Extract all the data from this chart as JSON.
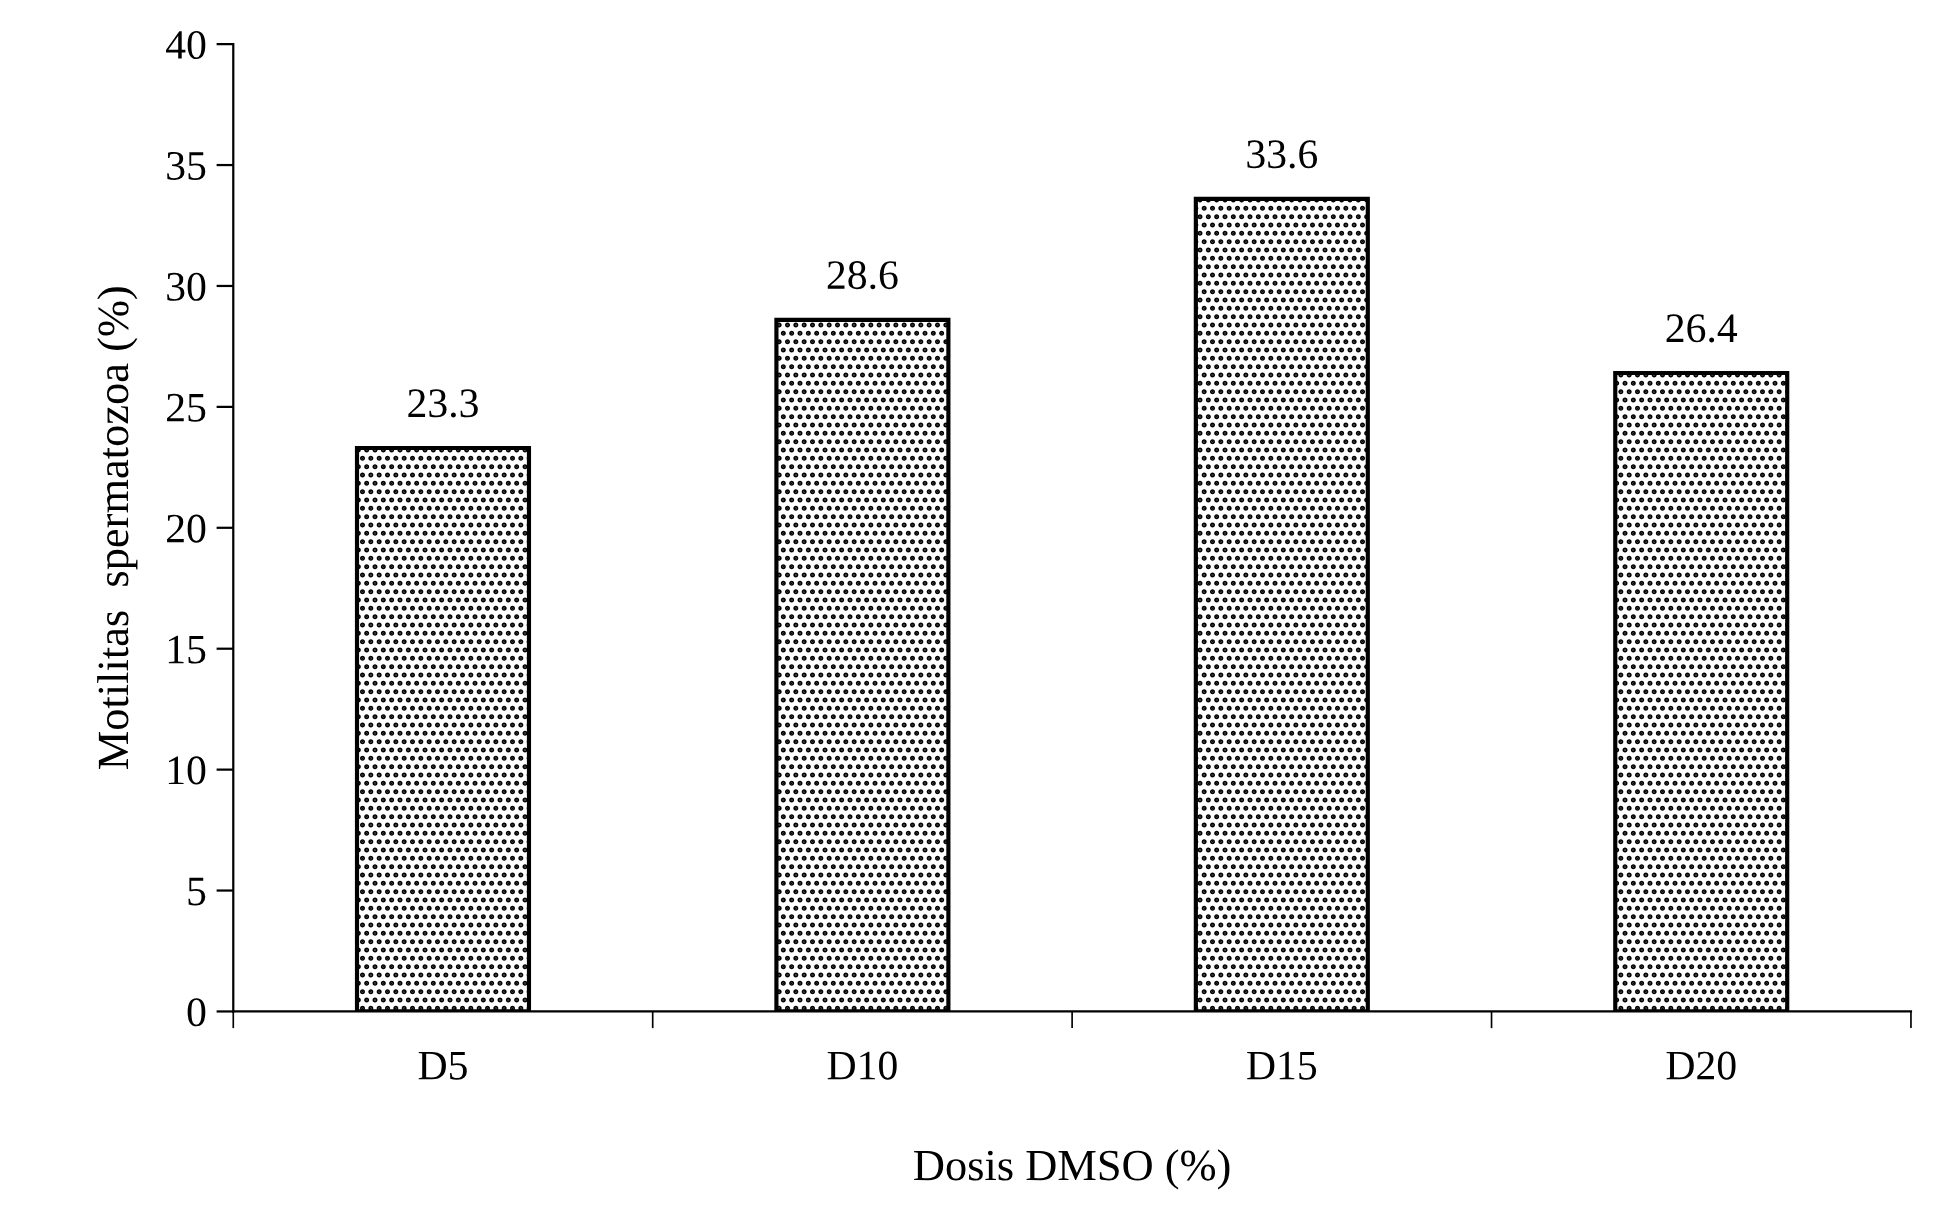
{
  "chart_data": {
    "type": "bar",
    "xlabel": "Dosis DMSO (%)",
    "ylabel": "Motilitas  spermatozoa (%)",
    "categories": [
      "D5",
      "D10",
      "D15",
      "D20"
    ],
    "values": [
      23.3,
      28.6,
      33.6,
      26.4
    ],
    "color": "#000000",
    "ylim": [
      0,
      40
    ],
    "yticks": [
      0,
      5,
      10,
      15,
      20,
      25,
      30,
      35,
      40
    ],
    "data_labels": true,
    "grid": false,
    "legend": false
  }
}
